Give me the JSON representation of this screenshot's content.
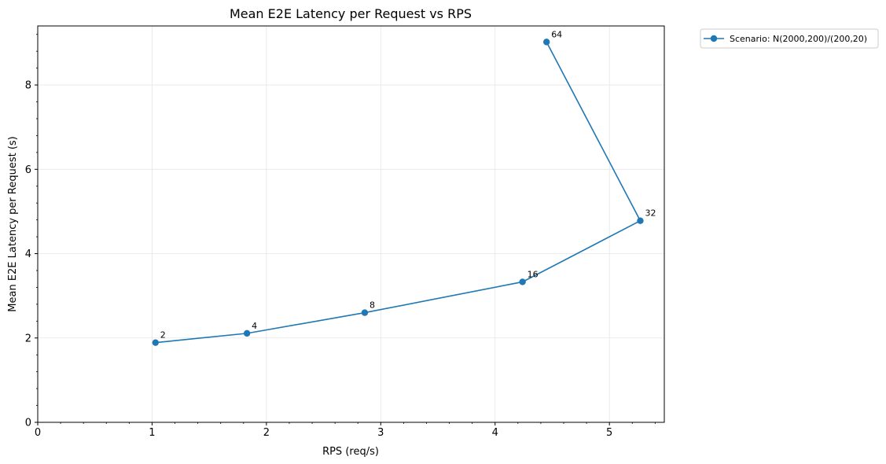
{
  "chart_data": {
    "type": "line",
    "title": "Mean E2E Latency per Request vs RPS",
    "xlabel": "RPS (req/s)",
    "ylabel": "Mean E2E Latency per Request (s)",
    "xlim": [
      0,
      5.48
    ],
    "ylim": [
      0,
      9.4
    ],
    "xticks": [
      0,
      1,
      2,
      3,
      4,
      5
    ],
    "yticks": [
      0,
      2,
      4,
      6,
      8
    ],
    "grid": true,
    "legend_position": "outside-top-right",
    "series": [
      {
        "name": "Scenario: N(2000,200)/(200,20)",
        "color": "#1f77b4",
        "marker": "circle",
        "x": [
          1.03,
          1.83,
          2.86,
          4.24,
          5.27,
          4.45
        ],
        "y": [
          1.89,
          2.11,
          2.6,
          3.33,
          4.78,
          9.02
        ],
        "point_labels": [
          "2",
          "4",
          "8",
          "16",
          "32",
          "64"
        ]
      }
    ]
  }
}
